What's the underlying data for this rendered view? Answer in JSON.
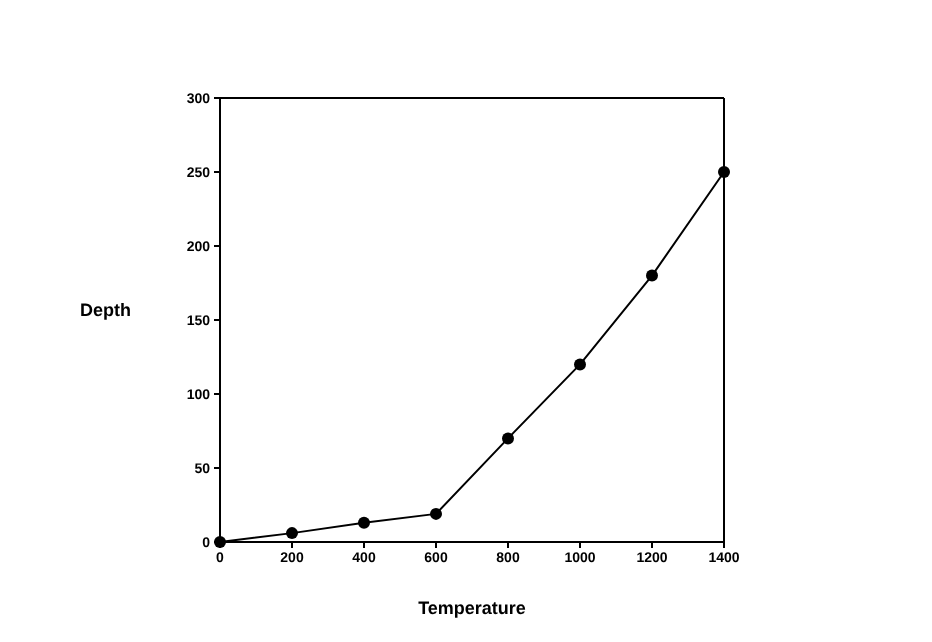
{
  "chart_data": {
    "type": "line",
    "xlabel": "Temperature",
    "ylabel": "Depth",
    "x": [
      0,
      200,
      400,
      600,
      800,
      1000,
      1200,
      1400
    ],
    "series": [
      {
        "color": "#000000",
        "values": [
          0,
          6,
          13,
          19,
          70,
          120,
          180,
          250
        ]
      }
    ],
    "xlim": [
      0,
      1400
    ],
    "xticks": [
      0,
      200,
      400,
      600,
      800,
      1000,
      1200,
      1400
    ],
    "ylim": [
      0,
      300
    ],
    "yticks": [
      0,
      50,
      100,
      150,
      200,
      250,
      300
    ],
    "marker": "circle",
    "line_style": "solid"
  }
}
